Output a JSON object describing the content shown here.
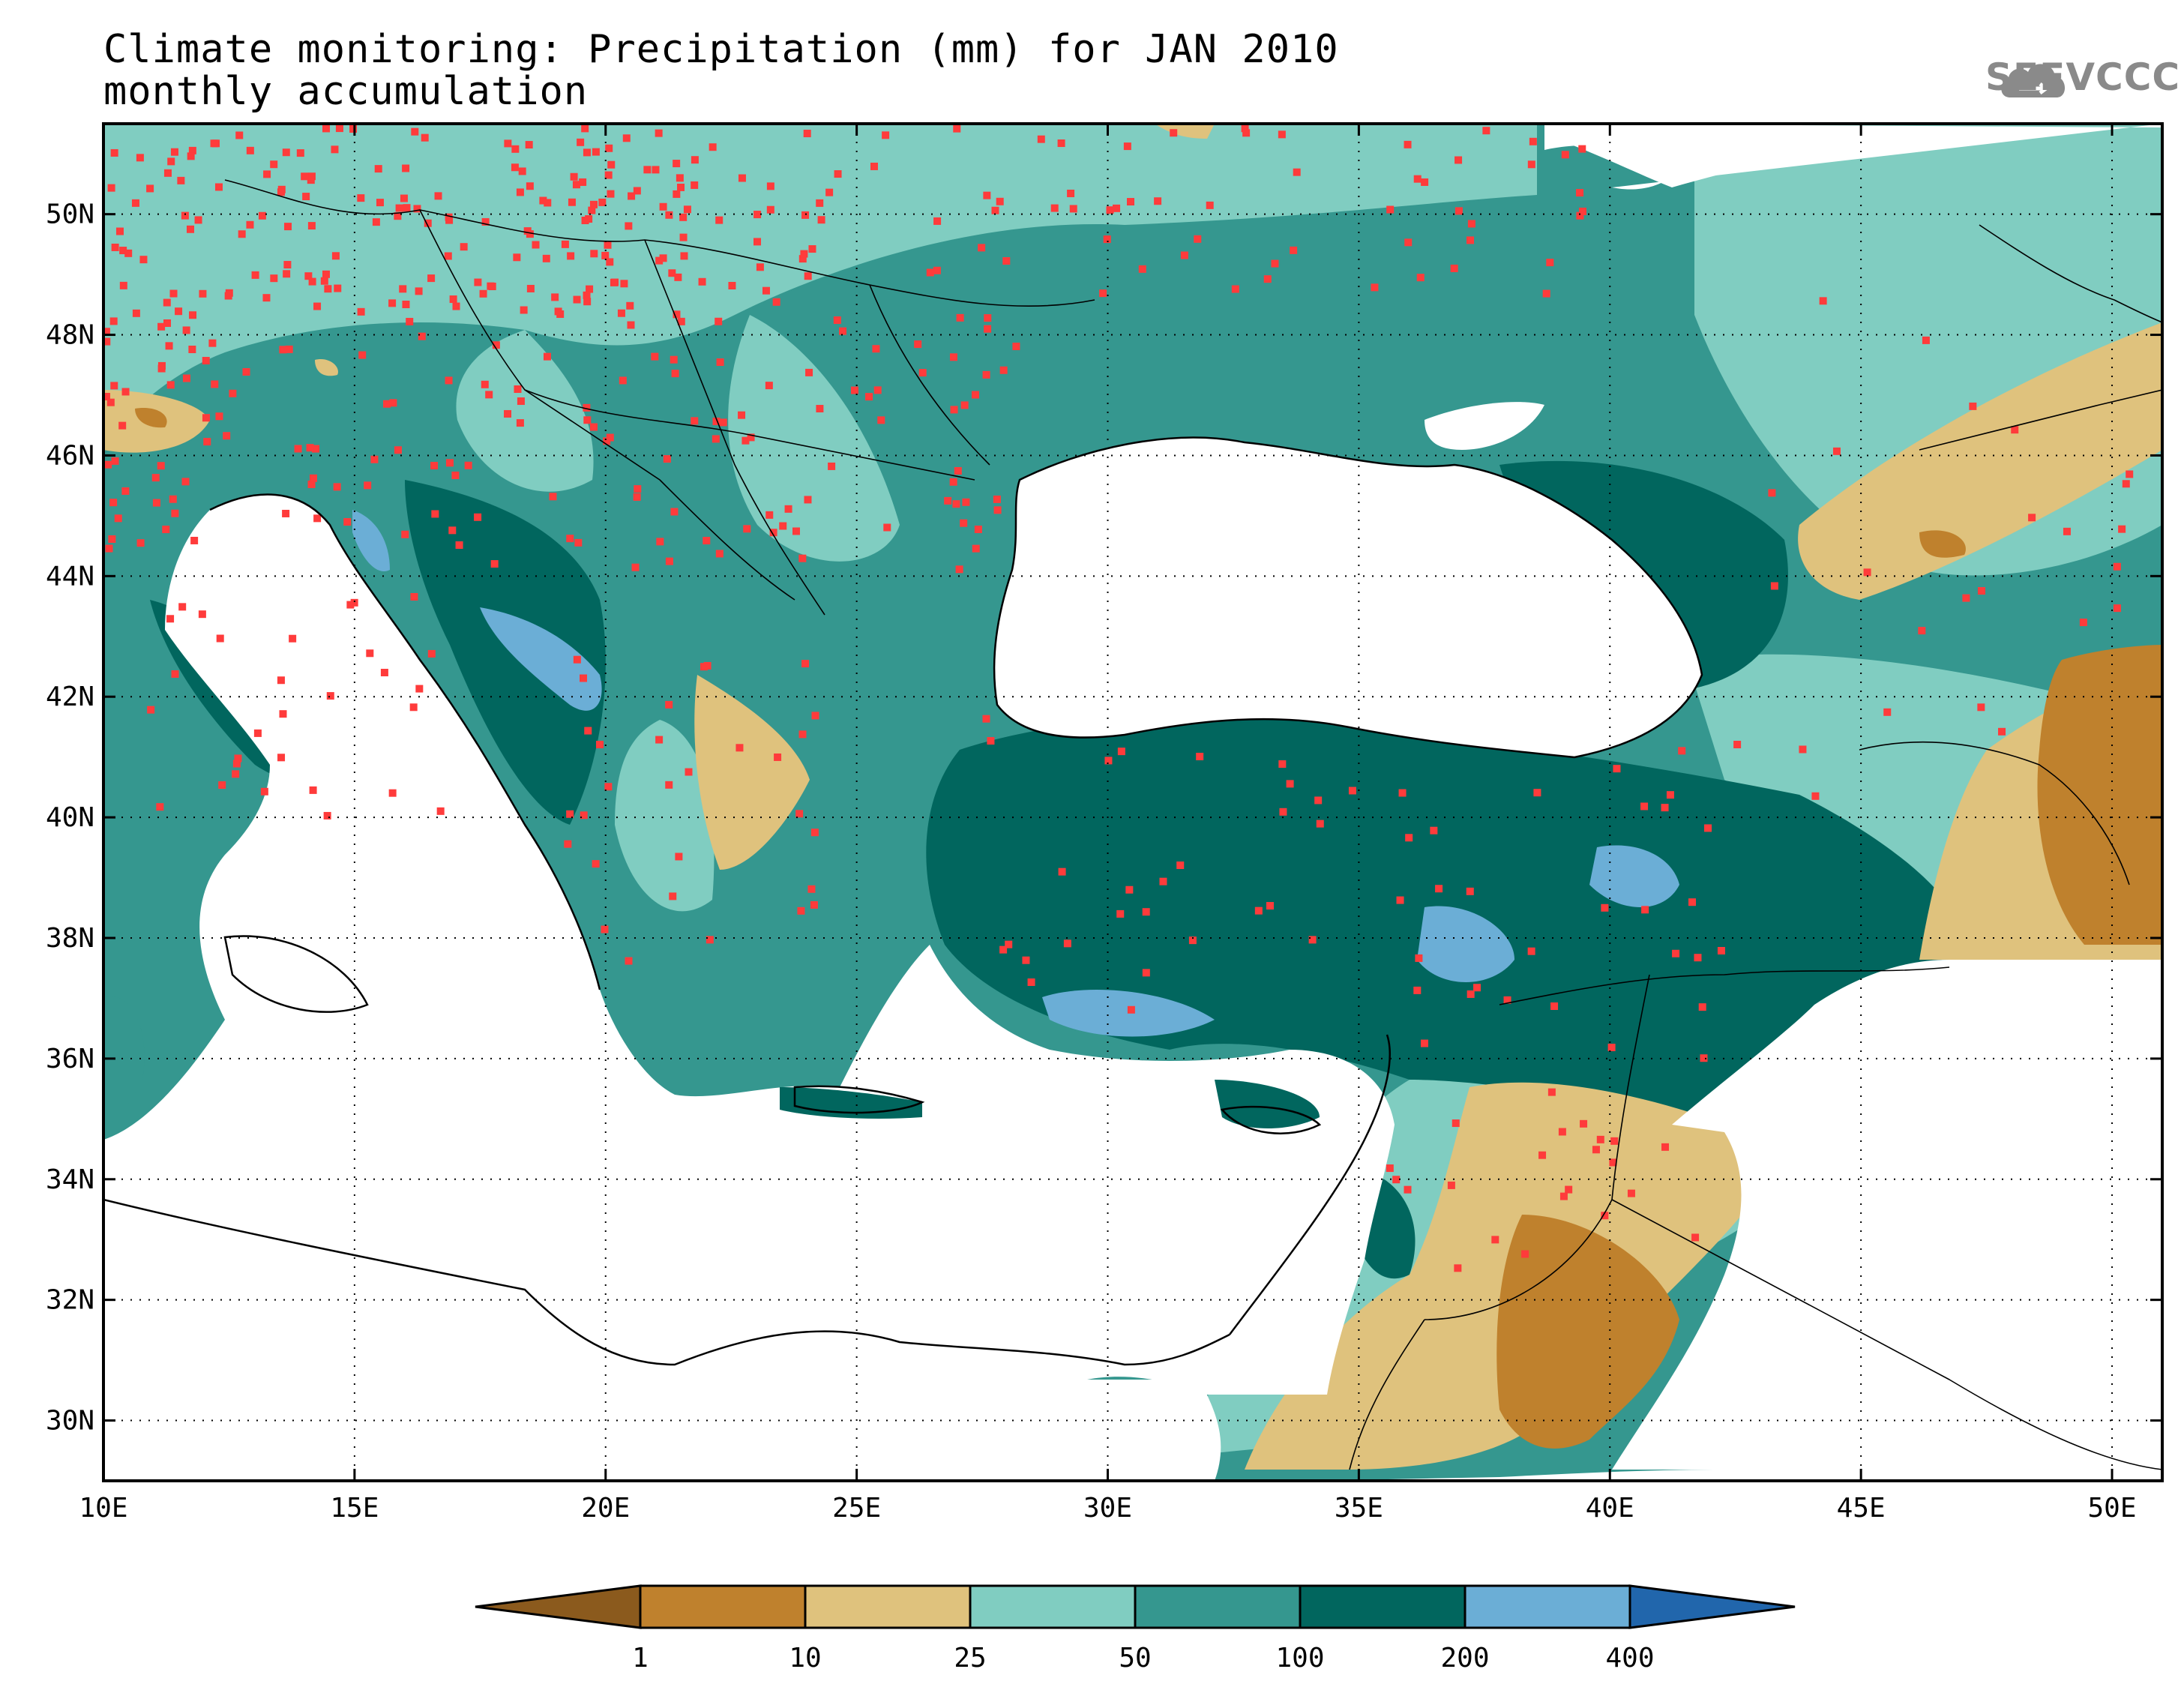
{
  "title": {
    "line1": "Climate monitoring: Precipitation (mm) for JAN 2010",
    "line2": "monthly accumulation"
  },
  "logo": {
    "text": "SEEVCCC",
    "icon": "cloud-icon"
  },
  "map": {
    "lon_range": [
      10,
      51
    ],
    "lat_range": [
      29,
      51.5
    ],
    "lon_ticks": [
      "10E",
      "15E",
      "20E",
      "25E",
      "30E",
      "35E",
      "40E",
      "45E",
      "50E"
    ],
    "lat_ticks": [
      "30N",
      "32N",
      "34N",
      "36N",
      "38N",
      "40N",
      "42N",
      "44N",
      "46N",
      "48N",
      "50N"
    ],
    "grid": "dotted",
    "station_marker_color": "#ff3b3b"
  },
  "legend": {
    "levels": [
      "1",
      "10",
      "25",
      "50",
      "100",
      "200",
      "400"
    ],
    "colors": {
      "lt1": "#8b5a1d",
      "1_10": "#bf812d",
      "10_25": "#dfc27d",
      "25_50": "#80cdc1",
      "50_100": "#35978f",
      "100_200": "#01665e",
      "200_400": "#6baed6",
      "gt400": "#2166ac"
    }
  }
}
